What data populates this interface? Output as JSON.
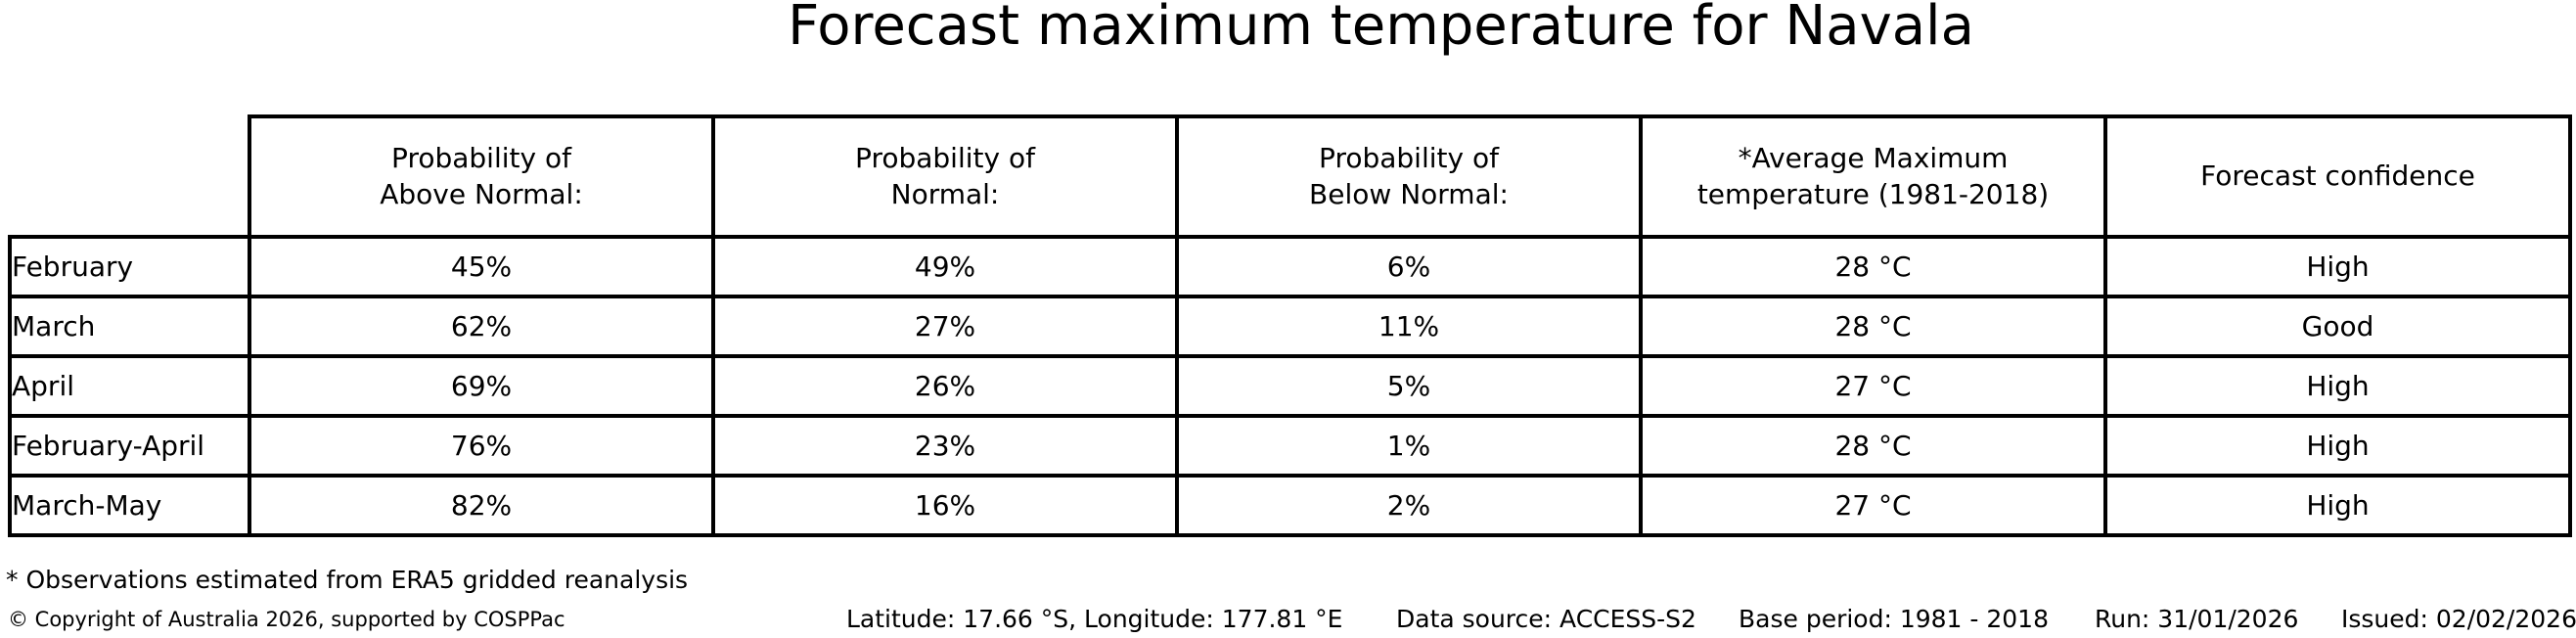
{
  "chart_data": {
    "type": "table",
    "title": "Forecast maximum temperature for Navala",
    "columns": [
      "",
      "Probability of Above Normal:",
      "Probability of Normal:",
      "Probability of Below Normal:",
      "*Average Maximum temperature (1981-2018)",
      "Forecast confidence"
    ],
    "columns_display": [
      "Probability of\nAbove Normal:",
      "Probability of\nNormal:",
      "Probability of\nBelow Normal:",
      "*Average Maximum\ntemperature (1981-2018)",
      "Forecast confidence"
    ],
    "rows": [
      [
        "February",
        "45%",
        "49%",
        "6%",
        "28 °C",
        "High"
      ],
      [
        "March",
        "62%",
        "27%",
        "11%",
        "28 °C",
        "Good"
      ],
      [
        "April",
        "69%",
        "26%",
        "5%",
        "27 °C",
        "High"
      ],
      [
        "February-April",
        "76%",
        "23%",
        "1%",
        "28 °C",
        "High"
      ],
      [
        "March-May",
        "82%",
        "16%",
        "2%",
        "27 °C",
        "High"
      ]
    ],
    "probabilities_above_normal": [
      45,
      62,
      69,
      76,
      82
    ],
    "probabilities_normal": [
      49,
      27,
      26,
      23,
      16
    ],
    "probabilities_below_normal": [
      6,
      11,
      5,
      1,
      2
    ],
    "average_maximum_temperature_c": [
      28,
      28,
      27,
      28,
      27
    ],
    "forecast_confidence": [
      "High",
      "Good",
      "High",
      "High",
      "High"
    ]
  },
  "footnote": "* Observations estimated from ERA5 gridded reanalysis",
  "footer": {
    "copyright": "© Copyright of Australia 2026, supported by COSPPac",
    "location": "Latitude: 17.66 °S, Longitude: 177.81 °E",
    "data_source": "Data source: ACCESS-S2",
    "base_period": "Base period: 1981 - 2018",
    "run": "Run: 31/01/2026",
    "issued": "Issued: 02/02/2026"
  },
  "colors": {
    "background": "#ffffff",
    "text": "#000000",
    "border": "#000000"
  }
}
